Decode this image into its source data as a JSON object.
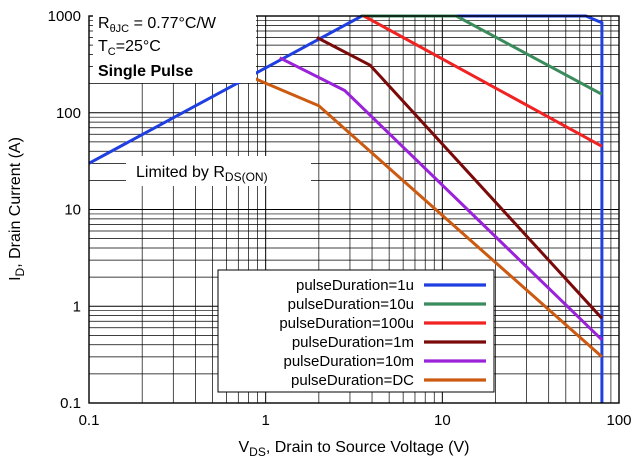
{
  "chart_data": {
    "type": "line",
    "x_scale": "log",
    "y_scale": "log",
    "xlim": [
      0.1,
      100
    ],
    "ylim": [
      0.1,
      1000
    ],
    "grid": true,
    "x_ticks": [
      "0.1",
      "1",
      "10",
      "100"
    ],
    "y_ticks": [
      "0.1",
      "1",
      "10",
      "100",
      "1000"
    ],
    "xlabel": {
      "main": "V",
      "sub": "DS",
      "rest": ", Drain to Source Voltage (V)"
    },
    "ylabel": {
      "main": "I",
      "sub": "D",
      "rest": ", Drain Current (A)"
    },
    "annotations": {
      "rth": {
        "main": "R",
        "sub": "θJC",
        "rest": " = 0.77°C/W"
      },
      "tc": {
        "main": "T",
        "sub": "C",
        "rest": "=25°C"
      },
      "pulse": "Single Pulse",
      "limited": {
        "main": "Limited by R",
        "sub": "DS(ON)"
      }
    },
    "legend_position": "bottom-right",
    "series": [
      {
        "name": "pulseDuration=1u",
        "color": "#1f3fe0",
        "points": [
          [
            0.1,
            30
          ],
          [
            3.5,
            1000
          ],
          [
            65,
            1000
          ],
          [
            80,
            850
          ],
          [
            80,
            0.1
          ]
        ]
      },
      {
        "name": "pulseDuration=10u",
        "color": "#3a8c5c",
        "points": [
          [
            3.5,
            1000
          ],
          [
            12,
            1000
          ],
          [
            80,
            155
          ]
        ]
      },
      {
        "name": "pulseDuration=100u",
        "color": "#f02222",
        "points": [
          [
            3.6,
            1000
          ],
          [
            80,
            45
          ]
        ]
      },
      {
        "name": "pulseDuration=1m",
        "color": "#7a0a0a",
        "points": [
          [
            1.95,
            600
          ],
          [
            3.9,
            310
          ],
          [
            80,
            0.75
          ]
        ]
      },
      {
        "name": "pulseDuration=10m",
        "color": "#9a22d8",
        "points": [
          [
            1.2,
            370
          ],
          [
            2.8,
            170
          ],
          [
            80,
            0.45
          ]
        ]
      },
      {
        "name": "pulseDuration=DC",
        "color": "#cc5a10",
        "points": [
          [
            0.78,
            245
          ],
          [
            2,
            118
          ],
          [
            80,
            0.3
          ]
        ]
      }
    ]
  }
}
